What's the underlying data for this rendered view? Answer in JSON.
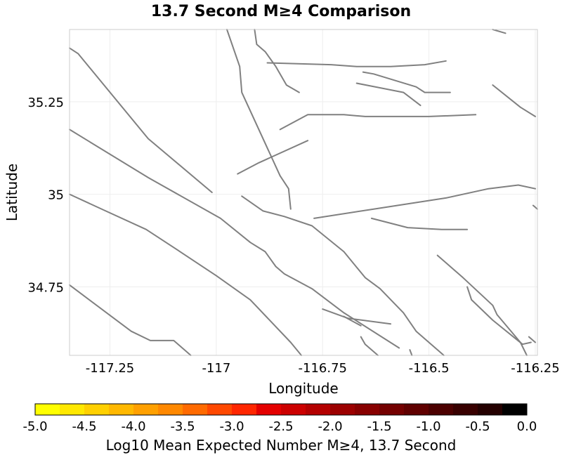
{
  "chart_data": {
    "type": "map",
    "title": "13.7 Second M≥4 Comparison",
    "xlabel": "Longitude",
    "ylabel": "Latitude",
    "xlim": [
      -117.345,
      -116.245
    ],
    "ylim": [
      34.565,
      35.445
    ],
    "x_ticks": [
      {
        "value": -117.25,
        "label": "-117.25"
      },
      {
        "value": -117.0,
        "label": "-117"
      },
      {
        "value": -116.75,
        "label": "-116.75"
      },
      {
        "value": -116.5,
        "label": "-116.5"
      },
      {
        "value": -116.25,
        "label": "-116.25"
      }
    ],
    "y_ticks": [
      {
        "value": 35.25,
        "label": "35.25"
      },
      {
        "value": 35.0,
        "label": "35"
      },
      {
        "value": 34.75,
        "label": "34.75"
      }
    ],
    "fault_color": "#808080",
    "faults": [
      [
        [
          -117.345,
          35.395
        ],
        [
          -117.325,
          35.38
        ],
        [
          -117.16,
          35.15
        ],
        [
          -117.01,
          35.005
        ]
      ],
      [
        [
          -117.345,
          35.175
        ],
        [
          -117.16,
          35.045
        ],
        [
          -116.99,
          34.935
        ],
        [
          -116.92,
          34.87
        ],
        [
          -116.885,
          34.845
        ],
        [
          -116.86,
          34.805
        ],
        [
          -116.84,
          34.785
        ],
        [
          -116.775,
          34.745
        ],
        [
          -116.7,
          34.68
        ],
        [
          -116.57,
          34.585
        ]
      ],
      [
        [
          -117.345,
          35.0
        ],
        [
          -117.26,
          34.955
        ],
        [
          -117.165,
          34.905
        ],
        [
          -117.085,
          34.845
        ],
        [
          -117.0,
          34.78
        ],
        [
          -116.92,
          34.715
        ],
        [
          -116.825,
          34.6
        ],
        [
          -116.8,
          34.565
        ]
      ],
      [
        [
          -117.345,
          34.755
        ],
        [
          -117.2,
          34.63
        ],
        [
          -117.155,
          34.605
        ],
        [
          -117.1,
          34.605
        ],
        [
          -117.06,
          34.565
        ]
      ],
      [
        [
          -116.975,
          35.445
        ],
        [
          -116.945,
          35.345
        ],
        [
          -116.94,
          35.275
        ],
        [
          -116.85,
          35.05
        ],
        [
          -116.83,
          35.015
        ],
        [
          -116.825,
          34.96
        ]
      ],
      [
        [
          -116.91,
          35.445
        ],
        [
          -116.905,
          35.405
        ],
        [
          -116.885,
          35.385
        ],
        [
          -116.86,
          35.345
        ],
        [
          -116.835,
          35.295
        ],
        [
          -116.805,
          35.275
        ]
      ],
      [
        [
          -116.88,
          35.355
        ],
        [
          -116.73,
          35.35
        ],
        [
          -116.67,
          35.345
        ],
        [
          -116.59,
          35.345
        ],
        [
          -116.51,
          35.35
        ],
        [
          -116.46,
          35.36
        ]
      ],
      [
        [
          -116.85,
          35.175
        ],
        [
          -116.785,
          35.215
        ],
        [
          -116.7,
          35.215
        ],
        [
          -116.65,
          35.21
        ],
        [
          -116.5,
          35.21
        ],
        [
          -116.39,
          35.215
        ]
      ],
      [
        [
          -116.95,
          35.055
        ],
        [
          -116.9,
          35.085
        ],
        [
          -116.785,
          35.145
        ]
      ],
      [
        [
          -116.94,
          34.995
        ],
        [
          -116.89,
          34.955
        ],
        [
          -116.84,
          34.94
        ],
        [
          -116.775,
          34.915
        ],
        [
          -116.7,
          34.845
        ],
        [
          -116.65,
          34.775
        ],
        [
          -116.615,
          34.745
        ],
        [
          -116.56,
          34.68
        ],
        [
          -116.53,
          34.63
        ],
        [
          -116.465,
          34.565
        ]
      ],
      [
        [
          -116.77,
          34.935
        ],
        [
          -116.63,
          34.96
        ],
        [
          -116.46,
          34.99
        ],
        [
          -116.36,
          35.015
        ],
        [
          -116.29,
          35.025
        ],
        [
          -116.25,
          35.015
        ]
      ],
      [
        [
          -116.635,
          34.935
        ],
        [
          -116.55,
          34.91
        ],
        [
          -116.47,
          34.905
        ],
        [
          -116.41,
          34.905
        ]
      ],
      [
        [
          -116.67,
          35.3
        ],
        [
          -116.56,
          35.275
        ],
        [
          -116.52,
          35.24
        ]
      ],
      [
        [
          -116.655,
          35.33
        ],
        [
          -116.63,
          35.325
        ],
        [
          -116.53,
          35.29
        ],
        [
          -116.51,
          35.275
        ],
        [
          -116.45,
          35.275
        ]
      ],
      [
        [
          -116.35,
          35.445
        ],
        [
          -116.32,
          35.435
        ]
      ],
      [
        [
          -116.35,
          35.295
        ],
        [
          -116.285,
          35.235
        ],
        [
          -116.25,
          35.21
        ]
      ],
      [
        [
          -116.48,
          34.835
        ],
        [
          -116.42,
          34.775
        ],
        [
          -116.35,
          34.7
        ],
        [
          -116.34,
          34.675
        ],
        [
          -116.285,
          34.6
        ],
        [
          -116.27,
          34.565
        ]
      ],
      [
        [
          -116.41,
          34.75
        ],
        [
          -116.4,
          34.715
        ],
        [
          -116.35,
          34.66
        ],
        [
          -116.28,
          34.595
        ],
        [
          -116.26,
          34.6
        ]
      ],
      [
        [
          -116.265,
          34.615
        ],
        [
          -116.25,
          34.6
        ]
      ],
      [
        [
          -116.255,
          34.97
        ],
        [
          -116.245,
          34.96
        ]
      ],
      [
        [
          -116.75,
          34.69
        ],
        [
          -116.69,
          34.665
        ],
        [
          -116.59,
          34.65
        ]
      ],
      [
        [
          -116.7,
          34.67
        ],
        [
          -116.66,
          34.645
        ]
      ],
      [
        [
          -116.66,
          34.615
        ],
        [
          -116.65,
          34.595
        ],
        [
          -116.62,
          34.565
        ]
      ],
      [
        [
          -116.545,
          34.58
        ],
        [
          -116.54,
          34.565
        ]
      ]
    ],
    "colorbar": {
      "label": "Log10 Mean Expected Number M≥4, 13.7 Second",
      "min": -5.0,
      "max": 0.0,
      "tick_labels": [
        "-5.0",
        "-4.5",
        "-4.0",
        "-3.5",
        "-3.0",
        "-2.5",
        "-2.0",
        "-1.5",
        "-1.0",
        "-0.5",
        "0.0"
      ],
      "colors": [
        "#ffff00",
        "#ffe800",
        "#ffd000",
        "#ffb800",
        "#ffa000",
        "#ff8800",
        "#ff6a00",
        "#ff4800",
        "#ff2600",
        "#e40000",
        "#cc0000",
        "#b40000",
        "#9c0000",
        "#880000",
        "#740000",
        "#600000",
        "#4c0000",
        "#380000",
        "#240000",
        "#000000"
      ]
    }
  }
}
